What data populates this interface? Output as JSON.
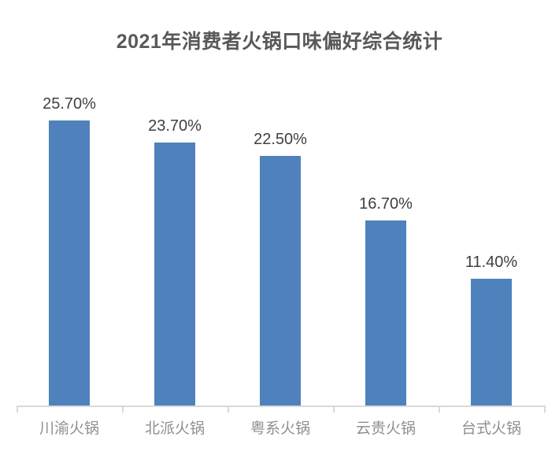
{
  "chart_data": {
    "type": "bar",
    "title": "2021年消费者火锅口味偏好综合统计",
    "categories": [
      "川渝火锅",
      "北派火锅",
      "粤系火锅",
      "云贵火锅",
      "台式火锅"
    ],
    "values": [
      25.7,
      23.7,
      22.5,
      16.7,
      11.4
    ],
    "data_labels": [
      "25.70%",
      "23.70%",
      "22.50%",
      "16.70%",
      "11.40%"
    ],
    "unit": "%",
    "xlabel": "",
    "ylabel": "",
    "ylim": [
      0,
      27
    ],
    "grid": false,
    "legend": false,
    "y_axis_visible": false,
    "colors": {
      "bar": "#4F81BD",
      "title": "#595959",
      "data_label": "#404040",
      "category_label": "#8F8F8F",
      "axis_line": "#D9D9D9",
      "background": "#FFFFFF"
    }
  }
}
